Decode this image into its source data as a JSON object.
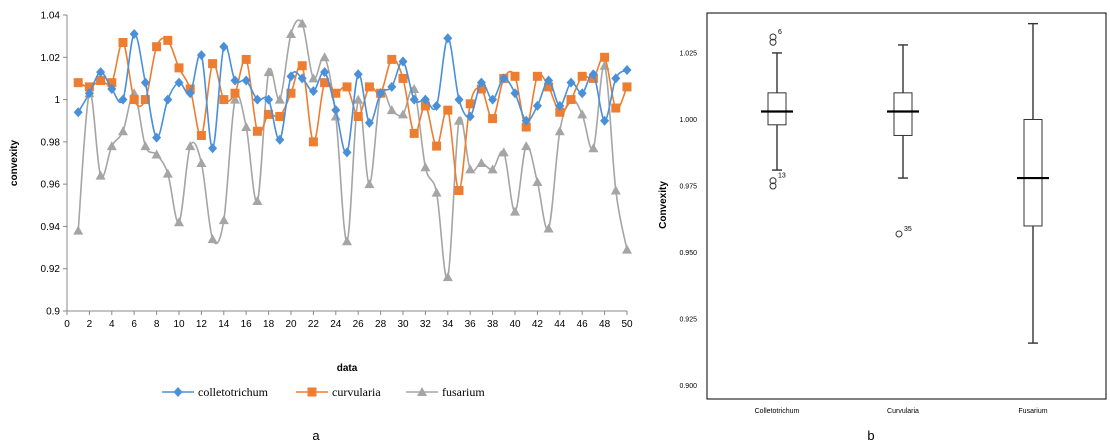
{
  "panels": {
    "a_label": "a",
    "b_label": "b"
  },
  "colors": {
    "colletotrichum": "#4A90D9",
    "curvularia": "#ED7D31",
    "fusarium": "#A5A5A5",
    "axis": "#888888",
    "box": "#333333"
  },
  "chart_data": [
    {
      "type": "line",
      "xlabel": "data",
      "ylabel": "convexity",
      "xlim": [
        0,
        50
      ],
      "ylim": [
        0.9,
        1.04
      ],
      "x_ticks": [
        0,
        2,
        4,
        6,
        8,
        10,
        12,
        14,
        16,
        18,
        20,
        22,
        24,
        26,
        28,
        30,
        32,
        34,
        36,
        38,
        40,
        42,
        44,
        46,
        48,
        50
      ],
      "y_ticks": [
        0.9,
        0.92,
        0.94,
        0.96,
        0.98,
        1,
        1.02,
        1.04
      ],
      "y_tick_labels": [
        "0.9",
        "0.92",
        "0.94",
        "0.96",
        "0.98",
        "1",
        "1.02",
        "1.04"
      ],
      "grid": false,
      "legend": "bottom",
      "x": [
        1,
        2,
        3,
        4,
        5,
        6,
        7,
        8,
        9,
        10,
        11,
        12,
        13,
        14,
        15,
        16,
        17,
        18,
        19,
        20,
        21,
        22,
        23,
        24,
        25,
        26,
        27,
        28,
        29,
        30,
        31,
        32,
        33,
        34,
        35,
        36,
        37,
        38,
        39,
        40,
        41,
        42,
        43,
        44,
        45,
        46,
        47,
        48,
        49,
        50
      ],
      "series": [
        {
          "name": "colletotrichum",
          "marker": "diamond",
          "values": [
            0.994,
            1.003,
            1.013,
            1.005,
            1.0,
            1.031,
            1.008,
            0.982,
            1.0,
            1.008,
            1.003,
            1.021,
            0.977,
            1.025,
            1.009,
            1.009,
            1.0,
            1.0,
            0.981,
            1.011,
            1.01,
            1.004,
            1.013,
            0.995,
            0.975,
            1.012,
            0.989,
            1.003,
            1.006,
            1.018,
            1.0,
            1.0,
            0.997,
            1.029,
            1.0,
            0.992,
            1.008,
            1.0,
            1.01,
            1.003,
            0.99,
            0.997,
            1.009,
            0.997,
            1.008,
            1.003,
            1.012,
            0.99,
            1.01,
            1.014
          ]
        },
        {
          "name": "curvularia",
          "marker": "square",
          "values": [
            1.008,
            1.006,
            1.009,
            1.008,
            1.027,
            1.0,
            1.0,
            1.025,
            1.028,
            1.015,
            1.005,
            0.983,
            1.017,
            1.0,
            1.003,
            1.019,
            0.985,
            0.993,
            0.992,
            1.003,
            1.016,
            0.98,
            1.008,
            1.003,
            1.006,
            0.992,
            1.006,
            1.003,
            1.019,
            1.01,
            0.984,
            0.997,
            0.978,
            0.995,
            0.957,
            0.998,
            1.005,
            0.991,
            1.01,
            1.011,
            0.987,
            1.011,
            1.006,
            0.994,
            1.0,
            1.011,
            1.01,
            1.02,
            0.996,
            1.006
          ]
        },
        {
          "name": "fusarium",
          "marker": "triangle",
          "values": [
            0.938,
            1.003,
            0.964,
            0.978,
            0.985,
            1.003,
            0.978,
            0.974,
            0.965,
            0.942,
            0.978,
            0.97,
            0.934,
            0.943,
            1.0,
            0.987,
            0.952,
            1.013,
            1.0,
            1.031,
            1.036,
            1.01,
            1.02,
            0.992,
            0.933,
            1.0,
            0.96,
            1.003,
            0.995,
            0.993,
            1.005,
            0.968,
            0.956,
            0.916,
            0.99,
            0.967,
            0.97,
            0.967,
            0.975,
            0.947,
            0.978,
            0.961,
            0.939,
            0.985,
            1.0,
            0.993,
            0.977,
            1.016,
            0.957,
            0.929
          ]
        }
      ]
    },
    {
      "type": "box",
      "xlabel": "",
      "ylabel": "Convexity",
      "ylim": [
        0.895,
        1.04
      ],
      "y_ticks": [
        0.9,
        0.925,
        0.95,
        0.975,
        1.0,
        1.025
      ],
      "y_tick_labels": [
        "0.900",
        "0.925",
        "0.950",
        "0.975",
        "1.000",
        "1.025"
      ],
      "categories": [
        "Colletotrichum",
        "Curvularia",
        "Fusarium"
      ],
      "boxes": [
        {
          "whisker_low": 0.981,
          "q1": 0.998,
          "median": 1.003,
          "q3": 1.01,
          "whisker_high": 1.025,
          "outliers": [
            {
              "value": 1.031,
              "label": "6"
            },
            {
              "value": 1.029,
              "label": ""
            },
            {
              "value": 0.977,
              "label": "13"
            },
            {
              "value": 0.975,
              "label": ""
            }
          ]
        },
        {
          "whisker_low": 0.978,
          "q1": 0.994,
          "median": 1.003,
          "q3": 1.01,
          "whisker_high": 1.028,
          "outliers": [
            {
              "value": 0.957,
              "label": "35"
            }
          ]
        },
        {
          "whisker_low": 0.916,
          "q1": 0.96,
          "median": 0.978,
          "q3": 1.0,
          "whisker_high": 1.036,
          "outliers": []
        }
      ]
    }
  ]
}
